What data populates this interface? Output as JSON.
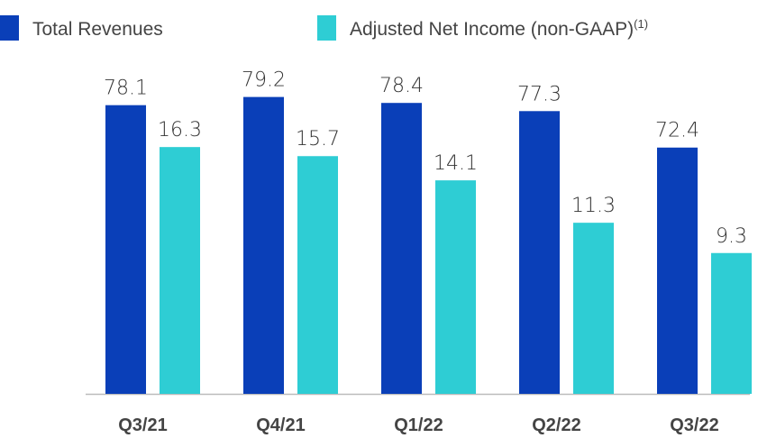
{
  "chart_data": {
    "type": "bar",
    "categories": [
      "Q3/21",
      "Q4/21",
      "Q1/22",
      "Q2/22",
      "Q3/22"
    ],
    "series": [
      {
        "name": "Total Revenues",
        "color": "#0a3fb8",
        "values": [
          78.1,
          79.2,
          78.4,
          77.3,
          72.4
        ]
      },
      {
        "name": "Adjusted Net Income (non-GAAP)",
        "name_superscript": "(1)",
        "color": "#2ecdd4",
        "axis": "y2",
        "values": [
          16.3,
          15.7,
          14.1,
          11.3,
          9.3
        ]
      }
    ],
    "ylim": [
      39.3,
      80
    ],
    "y2lim": [
      0,
      20
    ],
    "legend": "top-left"
  }
}
